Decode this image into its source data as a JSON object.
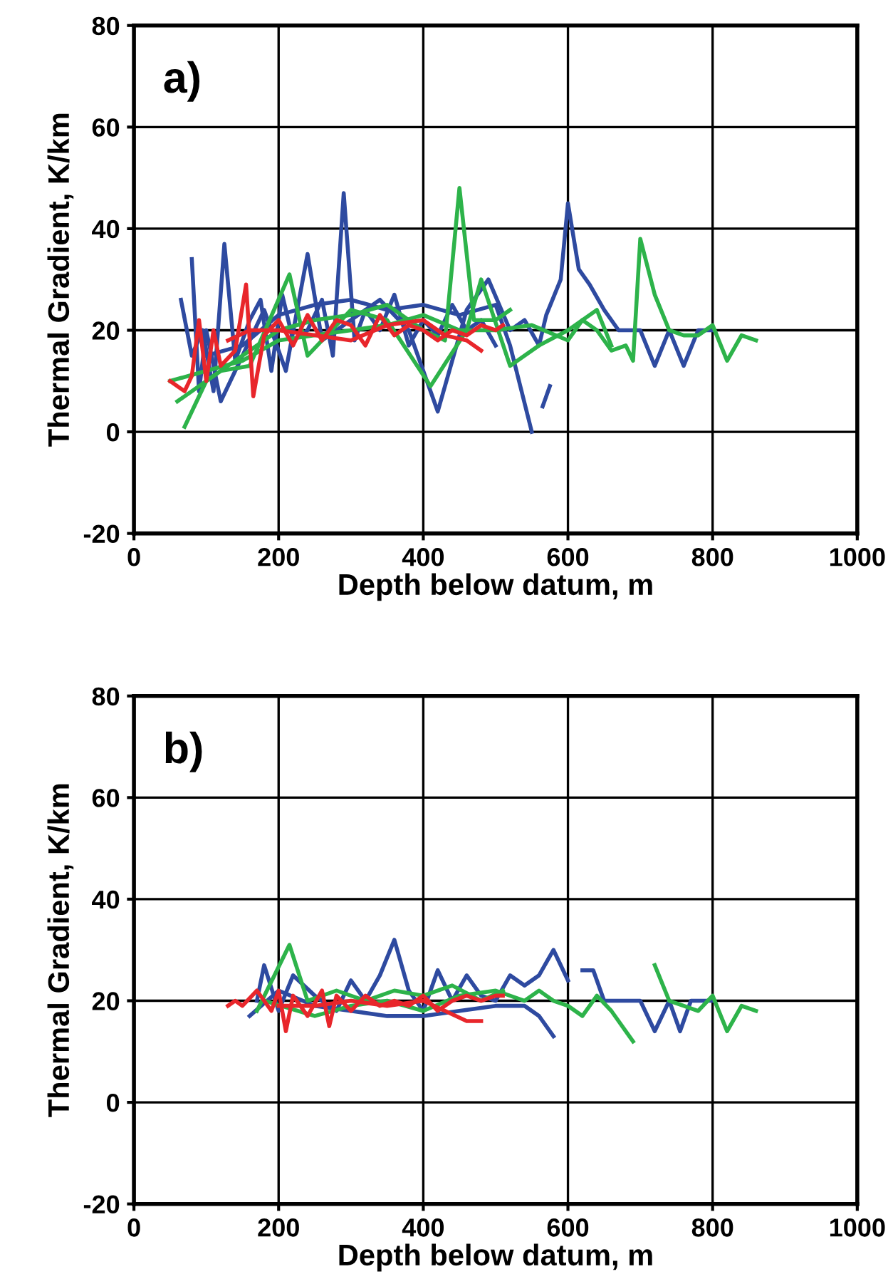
{
  "chart_data": [
    {
      "type": "line",
      "xlabel": "Depth below datum, m",
      "ylabel": "Thermal Gradient, K/km",
      "annotations": [
        "a)"
      ],
      "xlim": [
        0,
        1000
      ],
      "ylim": [
        -20,
        80
      ],
      "xticks": [
        0,
        200,
        400,
        600,
        800,
        1000
      ],
      "yticks": [
        -20,
        0,
        20,
        40,
        60,
        80
      ],
      "grid": true,
      "legend": false,
      "marker": "none",
      "line_style": "solid",
      "series": [
        {
          "color": "#2e4aa0",
          "x": [
            65,
            80,
            95,
            110,
            125,
            140,
            160,
            175,
            190,
            205,
            220,
            240,
            260,
            275,
            290,
            305,
            320,
            340,
            360,
            380,
            400,
            420,
            440,
            460,
            480,
            500
          ],
          "values": [
            26,
            15,
            20,
            8,
            37,
            14,
            22,
            26,
            12,
            27,
            18,
            20,
            26,
            15,
            47,
            18,
            24,
            20,
            27,
            17,
            22,
            19,
            25,
            20,
            22,
            17
          ]
        },
        {
          "color": "#2e4aa0",
          "x": [
            80,
            90,
            100,
            120,
            150,
            180,
            210,
            240,
            260,
            300,
            340,
            380,
            420,
            460,
            490,
            520,
            540,
            560,
            570,
            590,
            600,
            615,
            630,
            650,
            670,
            700,
            720,
            740,
            760,
            780,
            800
          ],
          "values": [
            34,
            8,
            20,
            6,
            15,
            24,
            12,
            35,
            18,
            22,
            26,
            20,
            4,
            24,
            30,
            20,
            22,
            17,
            23,
            30,
            45,
            32,
            29,
            24,
            20,
            20,
            13,
            20,
            13,
            20,
            20
          ]
        },
        {
          "color": "#2e4aa0",
          "x": [
            100,
            150,
            200,
            250,
            300,
            350,
            400,
            450,
            500,
            520,
            550,
            560,
            565,
            575
          ],
          "values": [
            15,
            17,
            23,
            25,
            26,
            24,
            25,
            23,
            25,
            17,
            0,
            null,
            5,
            9
          ]
        },
        {
          "color": "#2db34a",
          "x": [
            70,
            100,
            150,
            200,
            250,
            300,
            350,
            400,
            430,
            450,
            470,
            500,
            520
          ],
          "values": [
            1,
            10,
            15,
            20,
            22,
            23,
            25,
            20,
            18,
            48,
            22,
            22,
            24
          ]
        },
        {
          "color": "#2db34a",
          "x": [
            50,
            100,
            150,
            200,
            250,
            300,
            350,
            400,
            450,
            500,
            550,
            600,
            620,
            640,
            660,
            680,
            690,
            700,
            720,
            740,
            760,
            780,
            800,
            820,
            840,
            860
          ],
          "values": [
            10,
            12,
            14,
            18,
            19,
            20,
            21,
            23,
            20,
            20,
            21,
            18,
            22,
            20,
            16,
            17,
            14,
            38,
            27,
            20,
            19,
            19,
            21,
            14,
            19,
            18
          ]
        },
        {
          "color": "#2db34a",
          "x": [
            60,
            120,
            160,
            215,
            240,
            300,
            350,
            410,
            460,
            480,
            520,
            560,
            600,
            640,
            660
          ],
          "values": [
            6,
            12,
            13,
            31,
            15,
            24,
            22,
            9,
            20,
            30,
            13,
            17,
            20,
            24,
            17
          ]
        },
        {
          "color": "#e8262b",
          "x": [
            50,
            70,
            80,
            90,
            100,
            110,
            120,
            140,
            155,
            165,
            180,
            200,
            220,
            240,
            260,
            280,
            300,
            320,
            340,
            360,
            380,
            400,
            420,
            440,
            460,
            480,
            500,
            510
          ],
          "values": [
            10,
            8,
            11,
            22,
            10,
            20,
            13,
            16,
            29,
            7,
            19,
            22,
            17,
            23,
            18,
            22,
            21,
            17,
            23,
            19,
            21,
            20,
            18,
            20,
            19,
            21,
            20,
            21
          ]
        },
        {
          "color": "#e8262b",
          "x": [
            130,
            160,
            200,
            250,
            300,
            350,
            400,
            430,
            460,
            480
          ],
          "values": [
            18,
            20,
            20,
            19,
            18,
            21,
            22,
            19,
            18,
            16
          ]
        }
      ]
    },
    {
      "type": "line",
      "xlabel": "Depth below datum, m",
      "ylabel": "Thermal Gradient, K/km",
      "annotations": [
        "b)"
      ],
      "xlim": [
        0,
        1000
      ],
      "ylim": [
        -20,
        80
      ],
      "xticks": [
        0,
        200,
        400,
        600,
        800,
        1000
      ],
      "yticks": [
        -20,
        0,
        20,
        40,
        60,
        80
      ],
      "grid": true,
      "legend": false,
      "marker": "none",
      "line_style": "solid",
      "series": [
        {
          "color": "#2e4aa0",
          "x": [
            170,
            180,
            200,
            220,
            250,
            280,
            300,
            320,
            340,
            360,
            380,
            400,
            420,
            440,
            460,
            480,
            500,
            520,
            540,
            560,
            580,
            600
          ],
          "values": [
            20,
            27,
            18,
            25,
            21,
            18,
            24,
            20,
            25,
            32,
            22,
            18,
            26,
            20,
            25,
            21,
            20,
            25,
            23,
            25,
            30,
            24
          ]
        },
        {
          "color": "#2e4aa0",
          "x": [
            160,
            200,
            250,
            300,
            350,
            400,
            450,
            500,
            540,
            560,
            580
          ],
          "values": [
            17,
            22,
            19,
            18,
            17,
            17,
            18,
            19,
            19,
            17,
            13
          ]
        },
        {
          "color": "#2e4aa0",
          "x": [
            620,
            635,
            650,
            680,
            700,
            720,
            740,
            755,
            770,
            800
          ],
          "values": [
            26,
            26,
            20,
            20,
            20,
            14,
            20,
            14,
            20,
            20
          ]
        },
        {
          "color": "#2db34a",
          "x": [
            170,
            215,
            240,
            280,
            320,
            360,
            400,
            440,
            480,
            510
          ],
          "values": [
            18,
            31,
            20,
            22,
            20,
            22,
            21,
            23,
            20,
            22
          ]
        },
        {
          "color": "#2db34a",
          "x": [
            180,
            250,
            300,
            350,
            400,
            450,
            500,
            540,
            560,
            580,
            600,
            620,
            640,
            660,
            680,
            690
          ],
          "values": [
            20,
            17,
            19,
            20,
            18,
            21,
            22,
            20,
            22,
            20,
            19,
            17,
            21,
            18,
            14,
            12
          ]
        },
        {
          "color": "#2db34a",
          "x": [
            720,
            740,
            760,
            780,
            800,
            820,
            840,
            860
          ],
          "values": [
            27,
            20,
            19,
            18,
            21,
            14,
            19,
            18
          ]
        },
        {
          "color": "#e8262b",
          "x": [
            130,
            140,
            150,
            170,
            190,
            200,
            210,
            220,
            240,
            260,
            270,
            280,
            300,
            320,
            340,
            360,
            380,
            400,
            420,
            440,
            460,
            480,
            500,
            510
          ],
          "values": [
            19,
            20,
            19,
            22,
            18,
            22,
            14,
            21,
            17,
            22,
            15,
            21,
            18,
            21,
            19,
            20,
            19,
            21,
            18,
            20,
            21,
            20,
            21,
            21
          ]
        },
        {
          "color": "#e8262b",
          "x": [
            200,
            250,
            300,
            350,
            400,
            430,
            460,
            480
          ],
          "values": [
            19,
            19,
            20,
            19,
            20,
            18,
            16,
            16
          ]
        }
      ]
    }
  ]
}
